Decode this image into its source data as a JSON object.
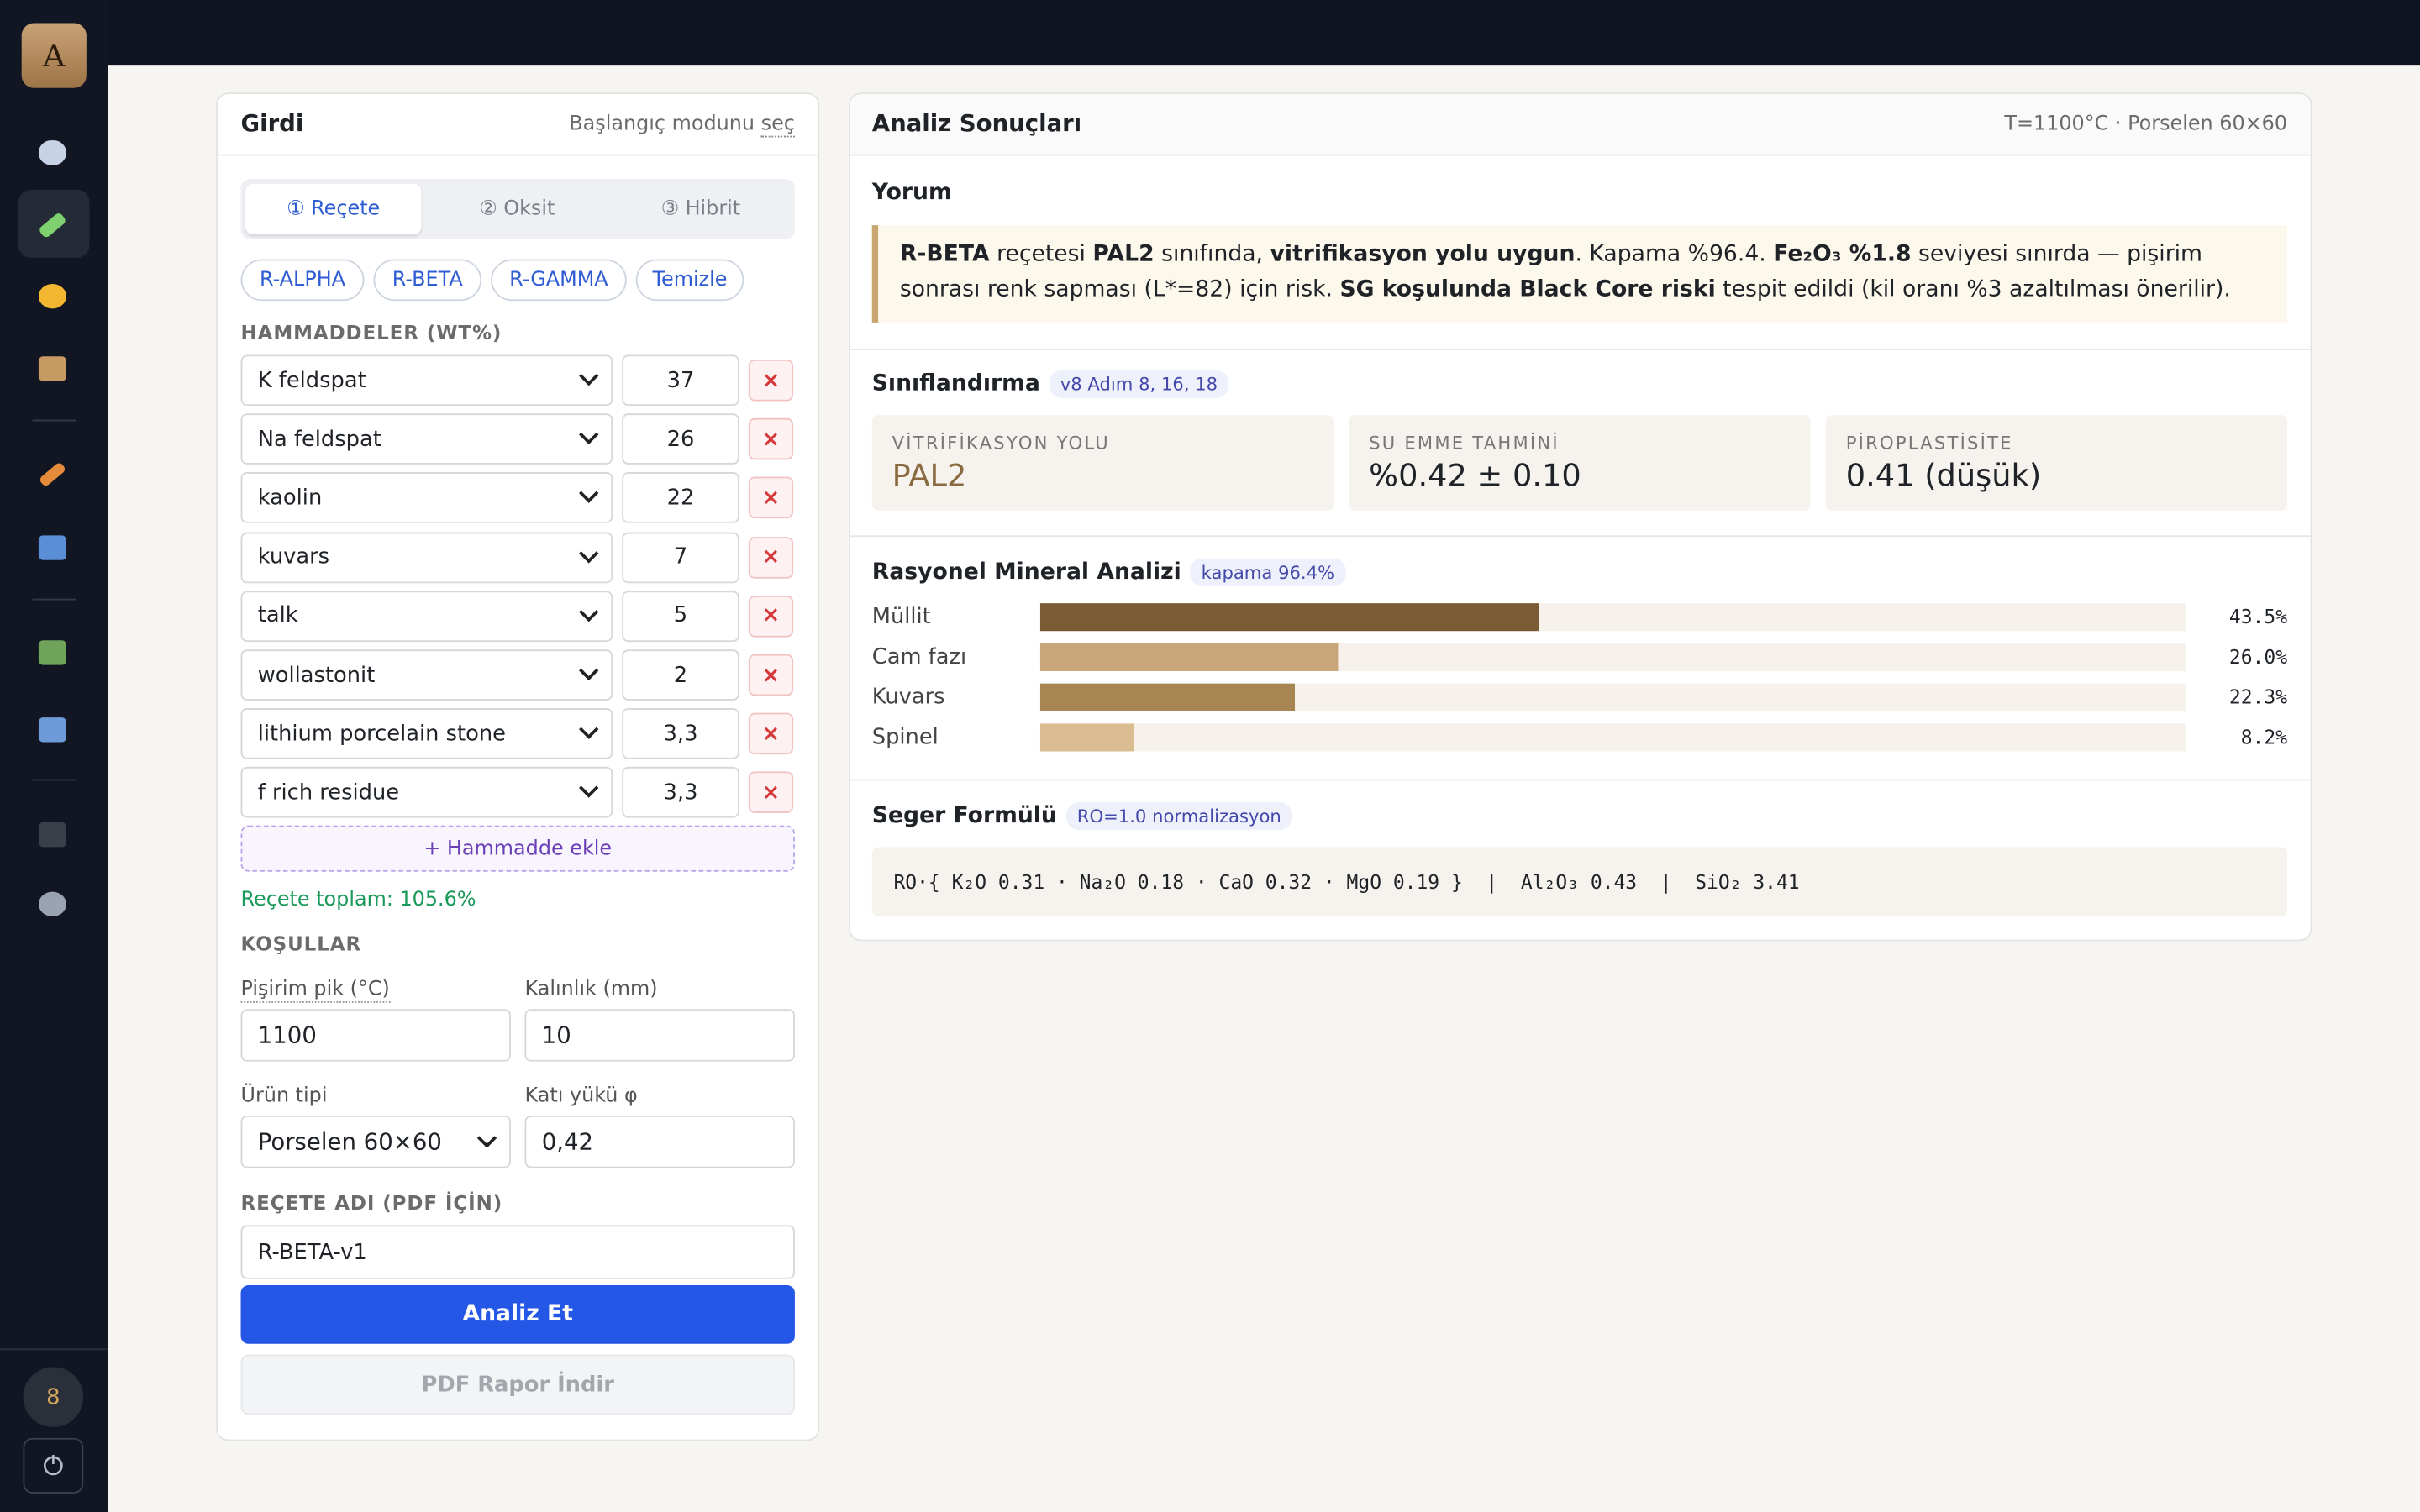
{
  "sidebar": {
    "avatar": "A",
    "badge": "8"
  },
  "input_panel": {
    "title": "Girdi",
    "hint_prefix": "Başlangıç modunu ",
    "hint_link": "seç",
    "tabs": [
      "① Reçete",
      "② Oksit",
      "③ Hibrit"
    ],
    "presets": [
      "R-ALPHA",
      "R-BETA",
      "R-GAMMA"
    ],
    "clear": "Temizle",
    "materials_heading": "HAMMADDELER (WT%)",
    "materials": [
      {
        "name": "K feldspat",
        "amount": "37"
      },
      {
        "name": "Na feldspat",
        "amount": "26"
      },
      {
        "name": "kaolin",
        "amount": "22"
      },
      {
        "name": "kuvars",
        "amount": "7"
      },
      {
        "name": "talk",
        "amount": "5"
      },
      {
        "name": "wollastonit",
        "amount": "2"
      },
      {
        "name": "lithium porcelain stone",
        "amount": "3,3"
      },
      {
        "name": "f rich residue",
        "amount": "3,3"
      }
    ],
    "remove": "×",
    "add": "+ Hammadde ekle",
    "total": "Reçete toplam: 105.6%",
    "conditions_heading": "KOŞULLAR",
    "fields": [
      {
        "label": "Pişirim pik (°C)",
        "value": "1100"
      },
      {
        "label": "Kalınlık (mm)",
        "value": "10"
      },
      {
        "label": "Ürün tipi",
        "value": "Porselen 60×60"
      },
      {
        "label": "Katı yükü φ",
        "value": "0,42"
      }
    ],
    "recipe_name_heading": "REÇETE ADI (PDF İÇİN)",
    "recipe_name": "R-BETA-v1",
    "analyze": "Analiz Et",
    "pdf": "PDF Rapor İndir"
  },
  "results": {
    "title": "Analiz Sonuçları",
    "context": "T=1100°C · Porselen 60×60",
    "comment_heading": "Yorum",
    "comment": [
      "R-BETA",
      " reçetesi ",
      "PAL2",
      " sınıfında, ",
      "vitrifikasyon yolu uygun",
      ". Kapama %96.4. ",
      "Fe₂O₃ %1.8",
      " seviyesi sınırda — pişirim sonrası renk sapması (L*=82) için risk. ",
      "SG koşulunda Black Core riski",
      " tespit edildi (kil oranı %3 azaltılması önerilir)."
    ],
    "classification_heading": "Sınıflandırma",
    "classification_badge": "v8 Adım 8, 16, 18",
    "metrics": [
      {
        "label": "VİTRİFİKASYON YOLU",
        "value": "PAL2"
      },
      {
        "label": "SU EMME TAHMİNİ",
        "value": "%0.42 ± 0.10"
      },
      {
        "label": "PİROPLASTİSİTE",
        "value": "0.41 (düşük)"
      }
    ],
    "minerals_heading": "Rasyonel Mineral Analizi",
    "minerals_badge": "kapama 96.4%",
    "minerals": {
      "names": [
        "Müllit",
        "Cam fazı",
        "Kuvars",
        "Spinel"
      ],
      "values": [
        43.5,
        26.0,
        22.3,
        8.2
      ],
      "value_labels": [
        "43.5%",
        "26.0%",
        "22.3%",
        "8.2%"
      ],
      "colors": [
        "#7b5a36",
        "#c9a67a",
        "#a78654",
        "#d9bc90"
      ]
    },
    "seger_heading": "Seger Formülü",
    "seger_badge": "RO=1.0 normalizasyon",
    "seger": "RO·{ K₂O 0.31 · Na₂O 0.18 · CaO 0.32 · MgO 0.19 }  |  Al₂O₃ 0.43  |  SiO₂ 3.41"
  }
}
